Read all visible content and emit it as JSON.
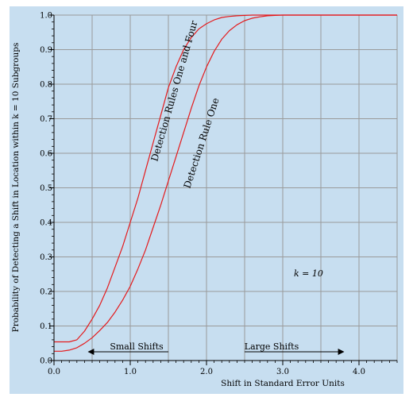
{
  "chart_data": {
    "type": "line",
    "xlabel": "Shift in Standard Error Units",
    "ylabel": "Probability of Detecting a Shift in Location within k = 10 Subgroups",
    "xlim": [
      0,
      4.5
    ],
    "ylim": [
      0,
      1.0
    ],
    "x_ticks": [
      0.0,
      1.0,
      2.0,
      3.0,
      4.0
    ],
    "x_tick_labels": [
      "0.0",
      "1.0",
      "2.0",
      "3.0",
      "4.0"
    ],
    "y_ticks": [
      0.0,
      0.1,
      0.2,
      0.3,
      0.4,
      0.5,
      0.6,
      0.7,
      0.8,
      0.9,
      1.0
    ],
    "y_tick_labels": [
      "0.0",
      "0.1",
      "0.2",
      "0.3",
      "0.4",
      "0.5",
      "0.6",
      "0.7",
      "0.8",
      "0.9",
      "1.0"
    ],
    "grid": true,
    "background_color": "#c7def0",
    "line_color": "#e41a1c",
    "series": [
      {
        "name": "Detection Rules One and Four",
        "x": [
          0.0,
          0.1,
          0.2,
          0.3,
          0.4,
          0.5,
          0.6,
          0.7,
          0.8,
          0.9,
          1.0,
          1.1,
          1.2,
          1.3,
          1.4,
          1.5,
          1.6,
          1.7,
          1.8,
          1.9,
          2.0,
          2.1,
          2.2,
          2.3,
          2.4,
          2.5,
          2.6,
          2.8,
          3.0,
          3.2,
          3.5,
          4.0,
          4.5
        ],
        "y": [
          0.054,
          0.054,
          0.054,
          0.06,
          0.085,
          0.12,
          0.16,
          0.21,
          0.27,
          0.33,
          0.4,
          0.47,
          0.55,
          0.63,
          0.71,
          0.79,
          0.85,
          0.9,
          0.935,
          0.96,
          0.975,
          0.986,
          0.993,
          0.996,
          0.998,
          0.999,
          1.0,
          1.0,
          1.0,
          1.0,
          1.0,
          1.0,
          1.0
        ]
      },
      {
        "name": "Detection Rule One",
        "x": [
          0.0,
          0.1,
          0.2,
          0.3,
          0.4,
          0.5,
          0.6,
          0.7,
          0.8,
          0.9,
          1.0,
          1.1,
          1.2,
          1.3,
          1.4,
          1.5,
          1.6,
          1.7,
          1.8,
          1.9,
          2.0,
          2.1,
          2.2,
          2.3,
          2.4,
          2.5,
          2.6,
          2.7,
          2.8,
          2.9,
          3.0,
          3.2,
          3.5,
          4.0,
          4.5
        ],
        "y": [
          0.027,
          0.027,
          0.03,
          0.037,
          0.05,
          0.066,
          0.087,
          0.11,
          0.14,
          0.175,
          0.215,
          0.265,
          0.32,
          0.385,
          0.45,
          0.52,
          0.59,
          0.66,
          0.73,
          0.795,
          0.85,
          0.895,
          0.93,
          0.955,
          0.972,
          0.984,
          0.991,
          0.995,
          0.998,
          0.999,
          1.0,
          1.0,
          1.0,
          1.0,
          1.0
        ]
      }
    ],
    "annotations": {
      "curve_label_rules_one_and_four": "Detection Rules One and Four",
      "curve_label_rule_one": "Detection Rule One",
      "k_note": "k = 10",
      "small_shifts": "Small Shifts",
      "large_shifts": "Large Shifts",
      "small_shifts_range": [
        0.45,
        1.5
      ],
      "large_shifts_range": [
        2.5,
        3.8
      ]
    }
  }
}
